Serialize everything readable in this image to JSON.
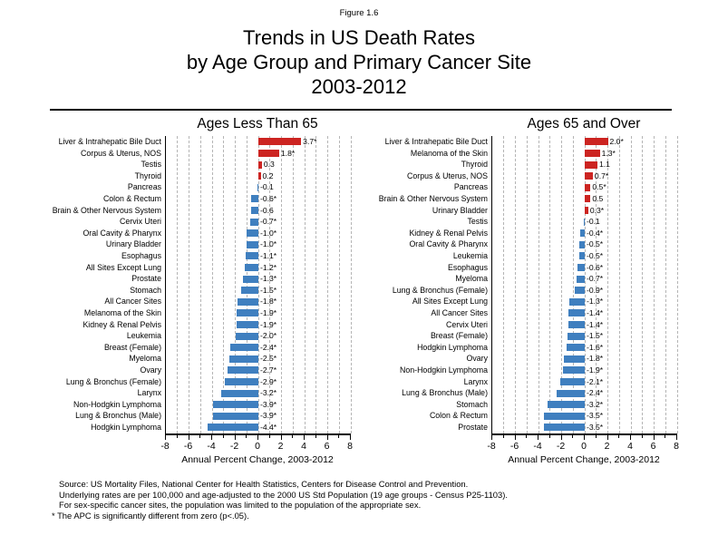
{
  "figure_label": "Figure 1.6",
  "title_lines": [
    "Trends in US Death Rates",
    "by Age Group and Primary Cancer Site",
    "2003-2012"
  ],
  "colors": {
    "positive_bar": "#cc2421",
    "negative_bar": "#3f7fbf",
    "gridline": "#b5b5b5",
    "axis": "#000000"
  },
  "chart_data": [
    {
      "type": "bar",
      "orientation": "horizontal",
      "title": "Ages Less Than 65",
      "xlabel": "Annual Percent Change, 2003-2012",
      "xlim": [
        -8,
        8
      ],
      "xticklabels": [
        "-8",
        "-6",
        "-4",
        "-2",
        "0",
        "2",
        "4",
        "6",
        "8"
      ],
      "grid": "dashed vertical every 1 unit",
      "categories": [
        "Liver & Intrahepatic Bile Duct",
        "Corpus & Uterus, NOS",
        "Testis",
        "Thyroid",
        "Pancreas",
        "Colon & Rectum",
        "Brain & Other Nervous System",
        "Cervix Uteri",
        "Oral Cavity & Pharynx",
        "Urinary Bladder",
        "Esophagus",
        "All Sites Except Lung",
        "Prostate",
        "Stomach",
        "All Cancer Sites",
        "Melanoma of the Skin",
        "Kidney & Renal Pelvis",
        "Leukemia",
        "Breast (Female)",
        "Myeloma",
        "Ovary",
        "Lung & Bronchus (Female)",
        "Larynx",
        "Non-Hodgkin Lymphoma",
        "Lung & Bronchus (Male)",
        "Hodgkin Lymphoma"
      ],
      "values": [
        3.7,
        1.8,
        0.3,
        0.2,
        -0.1,
        -0.6,
        -0.6,
        -0.7,
        -1.0,
        -1.0,
        -1.1,
        -1.2,
        -1.3,
        -1.5,
        -1.8,
        -1.9,
        -1.9,
        -2.0,
        -2.4,
        -2.5,
        -2.7,
        -2.9,
        -3.2,
        -3.9,
        -3.9,
        -4.4
      ],
      "value_labels": [
        "3.7*",
        "1.8*",
        "0.3",
        "0.2",
        "-0.1",
        "-0.6*",
        "-0.6",
        "-0.7*",
        "-1.0*",
        "-1.0*",
        "-1.1*",
        "-1.2*",
        "-1.3*",
        "-1.5*",
        "-1.8*",
        "-1.9*",
        "-1.9*",
        "-2.0*",
        "-2.4*",
        "-2.5*",
        "-2.7*",
        "-2.9*",
        "-3.2*",
        "-3.9*",
        "-3.9*",
        "-4.4*"
      ]
    },
    {
      "type": "bar",
      "orientation": "horizontal",
      "title": "Ages 65 and Over",
      "xlabel": "Annual Percent Change, 2003-2012",
      "xlim": [
        -8,
        8
      ],
      "xticklabels": [
        "-8",
        "-6",
        "-4",
        "-2",
        "0",
        "2",
        "4",
        "6",
        "8"
      ],
      "grid": "dashed vertical every 1 unit",
      "categories": [
        "Liver & Intrahepatic Bile Duct",
        "Melanoma of the Skin",
        "Thyroid",
        "Corpus & Uterus, NOS",
        "Pancreas",
        "Brain & Other Nervous System",
        "Urinary Bladder",
        "Testis",
        "Kidney & Renal Pelvis",
        "Oral Cavity & Pharynx",
        "Leukemia",
        "Esophagus",
        "Myeloma",
        "Lung & Bronchus (Female)",
        "All Sites Except Lung",
        "All Cancer Sites",
        "Cervix Uteri",
        "Breast (Female)",
        "Hodgkin Lymphoma",
        "Ovary",
        "Non-Hodgkin Lymphoma",
        "Larynx",
        "Lung & Bronchus (Male)",
        "Stomach",
        "Colon & Rectum",
        "Prostate"
      ],
      "values": [
        2.0,
        1.3,
        1.1,
        0.7,
        0.5,
        0.5,
        0.3,
        -0.1,
        -0.4,
        -0.5,
        -0.5,
        -0.6,
        -0.7,
        -0.9,
        -1.3,
        -1.4,
        -1.4,
        -1.5,
        -1.6,
        -1.8,
        -1.9,
        -2.1,
        -2.4,
        -3.2,
        -3.5,
        -3.5
      ],
      "value_labels": [
        "2.0*",
        "1.3*",
        "1.1",
        "0.7*",
        "0.5*",
        "0.5",
        "0.3*",
        "-0.1",
        "-0.4*",
        "-0.5*",
        "-0.5*",
        "-0.6*",
        "-0.7*",
        "-0.9*",
        "-1.3*",
        "-1.4*",
        "-1.4*",
        "-1.5*",
        "-1.6*",
        "-1.8*",
        "-1.9*",
        "-2.1*",
        "-2.4*",
        "-3.2*",
        "-3.5*",
        "-3.5*"
      ]
    }
  ],
  "footnotes": [
    "Source: US Mortality Files, National Center for Health Statistics, Centers for Disease Control and Prevention.",
    "Underlying rates are per 100,000 and age-adjusted to the 2000 US Std Population (19 age groups - Census P25-1103).",
    "For sex-specific cancer sites, the population was limited to the population of the appropriate sex.",
    "* The APC is significantly different from zero (p<.05)."
  ]
}
